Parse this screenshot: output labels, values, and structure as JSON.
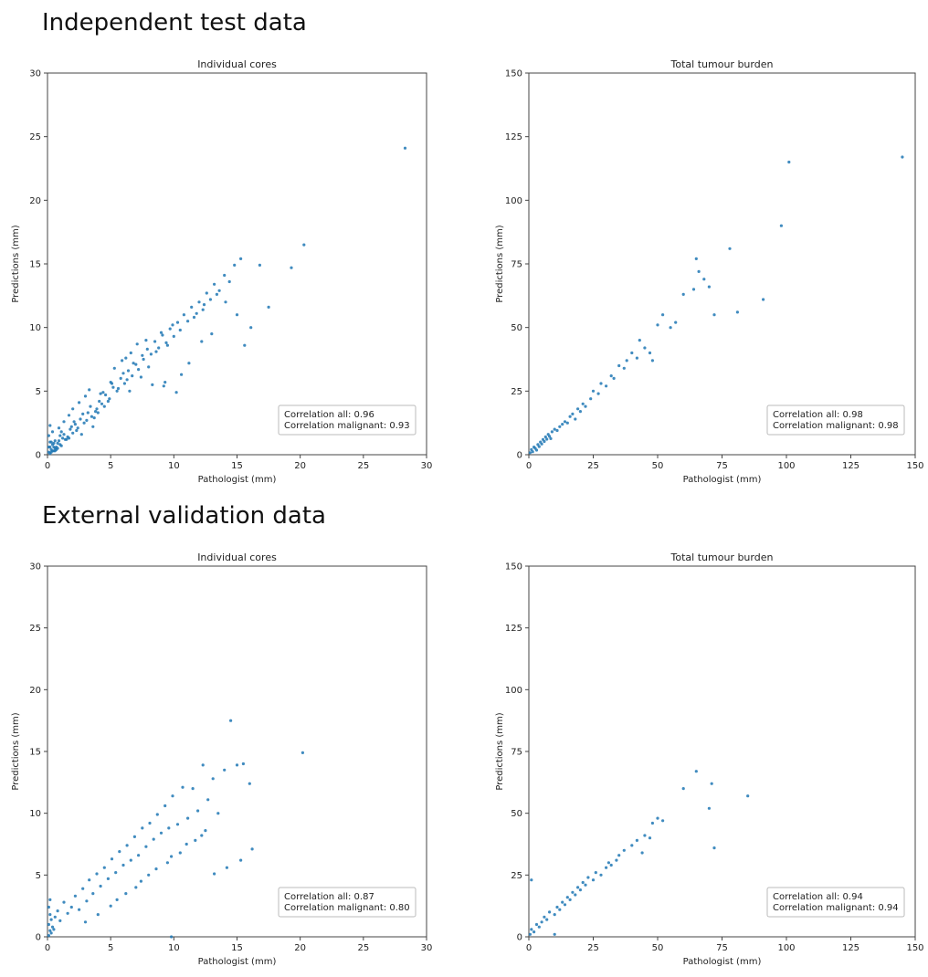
{
  "sections": {
    "top_title": "Independent test data",
    "bottom_title": "External validation data"
  },
  "colors": {
    "marker": "#1f77b4",
    "axes": "#444444",
    "text": "#222222"
  },
  "chart_data": [
    {
      "type": "scatter",
      "title": "Individual cores",
      "xlabel": "Pathologist (mm)",
      "ylabel": "Predictions (mm)",
      "xlim": [
        0,
        30
      ],
      "ylim": [
        0,
        30
      ],
      "xticks": [
        0,
        5,
        10,
        15,
        20,
        25,
        30
      ],
      "yticks": [
        0,
        5,
        10,
        15,
        20,
        25,
        30
      ],
      "grid": false,
      "legend_position": "bottom-right",
      "annotation": [
        "Correlation all: 0.96",
        "Correlation malignant: 0.93"
      ],
      "x": [
        0.1,
        0.2,
        0.3,
        0.4,
        0.5,
        0.6,
        0.8,
        1.0,
        1.2,
        1.5,
        0.2,
        0.4,
        0.6,
        0.9,
        1.1,
        1.3,
        1.6,
        1.8,
        2.0,
        2.2,
        0.3,
        0.7,
        1.0,
        1.4,
        1.9,
        2.3,
        2.6,
        2.9,
        3.2,
        3.5,
        0.5,
        1.1,
        1.7,
        2.1,
        2.4,
        2.8,
        3.1,
        3.4,
        3.8,
        4.1,
        0.1,
        0.2,
        0.1,
        0.3,
        0.2,
        0.5,
        0.4,
        0.7,
        0.6,
        0.8,
        4.3,
        4.6,
        4.9,
        5.2,
        5.5,
        5.8,
        6.1,
        6.4,
        6.7,
        7.0,
        3.9,
        4.4,
        4.8,
        5.1,
        5.6,
        6.0,
        6.3,
        6.8,
        7.2,
        7.5,
        7.6,
        7.9,
        8.2,
        8.5,
        8.8,
        9.1,
        9.4,
        9.7,
        10.0,
        10.3,
        8.0,
        8.6,
        9.0,
        9.5,
        9.9,
        10.5,
        10.8,
        11.1,
        11.4,
        11.8,
        12.0,
        12.3,
        12.6,
        12.9,
        13.2,
        13.6,
        14.0,
        14.4,
        14.8,
        15.3,
        6.5,
        7.4,
        8.3,
        9.3,
        10.2,
        11.2,
        12.2,
        13.0,
        14.1,
        15.0,
        0.9,
        1.3,
        1.7,
        2.0,
        2.5,
        3.0,
        3.3,
        3.6,
        4.0,
        4.5,
        2.7,
        3.7,
        4.2,
        5.0,
        5.3,
        5.9,
        6.2,
        6.6,
        7.1,
        7.8,
        9.2,
        10.6,
        11.6,
        12.4,
        13.4,
        15.6,
        16.1,
        16.8,
        17.5,
        19.3,
        20.3,
        28.3
      ],
      "y": [
        0.2,
        0.1,
        0.4,
        0.3,
        0.6,
        0.5,
        0.9,
        0.8,
        1.3,
        1.2,
        0.6,
        0.8,
        0.3,
        1.1,
        0.7,
        1.6,
        1.4,
        2.0,
        1.7,
        2.4,
        1.0,
        0.6,
        1.5,
        1.2,
        2.2,
        1.9,
        2.8,
        2.5,
        3.3,
        3.0,
        0.9,
        1.8,
        1.3,
        2.6,
        2.1,
        3.2,
        2.7,
        3.8,
        3.4,
        4.2,
        0.6,
        1.0,
        1.5,
        0.2,
        2.3,
        0.3,
        1.8,
        0.4,
        1.1,
        0.5,
        4.0,
        4.7,
        4.4,
        5.3,
        5.0,
        6.0,
        5.6,
        6.6,
        6.2,
        7.1,
        3.6,
        4.9,
        4.2,
        5.6,
        5.2,
        6.4,
        5.9,
        7.2,
        6.7,
        7.8,
        7.5,
        8.3,
        7.9,
        8.9,
        8.4,
        9.4,
        8.8,
        9.9,
        9.3,
        10.4,
        6.9,
        8.1,
        9.6,
        8.6,
        10.2,
        9.8,
        11.0,
        10.5,
        11.6,
        11.1,
        12.0,
        11.4,
        12.7,
        12.2,
        13.4,
        12.9,
        14.1,
        13.6,
        14.9,
        15.4,
        5.0,
        6.1,
        5.5,
        5.7,
        4.9,
        7.2,
        8.9,
        9.5,
        12.0,
        11.0,
        2.1,
        2.6,
        3.1,
        3.6,
        4.1,
        4.6,
        5.1,
        2.2,
        3.3,
        3.8,
        1.6,
        2.9,
        4.8,
        5.7,
        6.8,
        7.4,
        7.6,
        8.0,
        8.7,
        9.0,
        5.4,
        6.3,
        10.8,
        11.8,
        12.6,
        8.6,
        10.0,
        14.9,
        11.6,
        14.7,
        16.5,
        24.1
      ]
    },
    {
      "type": "scatter",
      "title": "Total tumour burden",
      "xlabel": "Pathologist (mm)",
      "ylabel": "Predictions (mm)",
      "xlim": [
        0,
        150
      ],
      "ylim": [
        0,
        150
      ],
      "xticks": [
        0,
        25,
        50,
        75,
        100,
        125,
        150
      ],
      "yticks": [
        0,
        25,
        50,
        75,
        100,
        125,
        150
      ],
      "grid": false,
      "legend_position": "bottom-right",
      "annotation": [
        "Correlation all: 0.98",
        "Correlation malignant: 0.98"
      ],
      "x": [
        0.5,
        1,
        1.5,
        2,
        2.5,
        3,
        3.5,
        4,
        4.5,
        5,
        5.5,
        6,
        6.5,
        7,
        7.5,
        8,
        8.5,
        9,
        10,
        11,
        12,
        13,
        14,
        15,
        16,
        17,
        18,
        19,
        20,
        21,
        22,
        24,
        25,
        27,
        28,
        30,
        32,
        33,
        35,
        37,
        38,
        40,
        42,
        43,
        45,
        47,
        48,
        50,
        52,
        55,
        57,
        60,
        64,
        65,
        66,
        68,
        70,
        72,
        78,
        81,
        91,
        98,
        101,
        145
      ],
      "y": [
        0.8,
        2,
        1.2,
        3,
        2.5,
        1.8,
        4,
        3.2,
        5,
        4.2,
        6,
        5.2,
        7,
        6.1,
        8,
        7.2,
        6.3,
        9,
        10,
        9.5,
        11,
        12,
        13,
        12.5,
        15,
        16,
        14,
        18,
        17,
        20,
        19,
        22,
        25,
        24,
        28,
        27,
        31,
        30,
        35,
        34,
        37,
        40,
        38,
        45,
        42,
        40,
        37,
        51,
        55,
        50,
        52,
        63,
        65,
        77,
        72,
        69,
        66,
        55,
        81,
        56,
        61,
        90,
        115,
        117
      ]
    },
    {
      "type": "scatter",
      "title": "Individual cores",
      "xlabel": "Pathologist (mm)",
      "ylabel": "Predictions (mm)",
      "xlim": [
        0,
        30
      ],
      "ylim": [
        0,
        30
      ],
      "xticks": [
        0,
        5,
        10,
        15,
        20,
        25,
        30
      ],
      "yticks": [
        0,
        5,
        10,
        15,
        20,
        25,
        30
      ],
      "grid": false,
      "legend_position": "bottom-right",
      "annotation": [
        "Correlation all: 0.87",
        "Correlation malignant: 0.80"
      ],
      "x": [
        0.1,
        0.2,
        0.1,
        0.3,
        0.2,
        0.4,
        0.1,
        0.3,
        0.5,
        0.2,
        0.6,
        0.8,
        1.0,
        1.3,
        1.6,
        1.9,
        2.2,
        2.5,
        2.8,
        3.1,
        3.3,
        3.6,
        3.9,
        4.2,
        4.5,
        4.8,
        5.1,
        5.4,
        5.7,
        6.0,
        6.3,
        6.6,
        6.9,
        7.2,
        7.5,
        7.8,
        8.1,
        8.4,
        8.7,
        9.0,
        9.3,
        9.6,
        9.9,
        10.3,
        10.7,
        11.1,
        11.5,
        11.9,
        12.3,
        12.7,
        13.1,
        13.5,
        14.0,
        14.5,
        15.0,
        15.5,
        16.0,
        5.0,
        6.2,
        7.4,
        8.6,
        9.8,
        11.0,
        12.2,
        3.0,
        4.0,
        5.5,
        7.0,
        8.0,
        9.5,
        10.5,
        11.7,
        12.5,
        13.2,
        14.2,
        15.3,
        16.2,
        20.2,
        9.8
      ],
      "y": [
        0.1,
        0.5,
        1.0,
        0.3,
        1.8,
        0.8,
        2.4,
        1.4,
        0.6,
        3.0,
        1.6,
        2.1,
        1.3,
        2.8,
        1.9,
        2.4,
        3.3,
        2.2,
        3.9,
        2.9,
        4.6,
        3.5,
        5.1,
        4.1,
        5.6,
        4.7,
        6.3,
        5.2,
        6.9,
        5.8,
        7.4,
        6.2,
        8.1,
        6.6,
        8.8,
        7.3,
        9.2,
        7.9,
        9.9,
        8.4,
        10.6,
        8.8,
        11.4,
        9.1,
        12.1,
        9.6,
        12.0,
        10.2,
        13.9,
        11.1,
        12.8,
        10.0,
        13.5,
        17.5,
        13.9,
        14.0,
        12.4,
        2.5,
        3.5,
        4.5,
        5.5,
        6.5,
        7.5,
        8.2,
        1.2,
        1.8,
        3.0,
        4.0,
        5.0,
        6.0,
        6.8,
        7.8,
        8.6,
        5.1,
        5.6,
        6.2,
        7.1,
        14.9,
        0.0
      ]
    },
    {
      "type": "scatter",
      "title": "Total tumour burden",
      "xlabel": "Pathologist (mm)",
      "ylabel": "Predictions (mm)",
      "xlim": [
        0,
        150
      ],
      "ylim": [
        0,
        150
      ],
      "xticks": [
        0,
        25,
        50,
        75,
        100,
        125,
        150
      ],
      "yticks": [
        0,
        25,
        50,
        75,
        100,
        125,
        150
      ],
      "grid": false,
      "legend_position": "bottom-right",
      "annotation": [
        "Correlation all: 0.94",
        "Correlation malignant: 0.94"
      ],
      "x": [
        0.5,
        1,
        2,
        3,
        4,
        5,
        6,
        7,
        8,
        10,
        11,
        12,
        13,
        14,
        15,
        16,
        17,
        18,
        19,
        20,
        21,
        22,
        23,
        25,
        26,
        28,
        30,
        31,
        32,
        34,
        35,
        37,
        40,
        42,
        44,
        45,
        47,
        48,
        50,
        52,
        60,
        65,
        70,
        71,
        72,
        85,
        1,
        10
      ],
      "y": [
        1,
        3,
        2,
        5,
        4,
        6,
        8,
        7,
        10,
        9,
        12,
        11,
        14,
        13,
        16,
        15,
        18,
        17,
        20,
        19,
        22,
        21,
        24,
        23,
        26,
        25,
        28,
        30,
        29,
        31,
        33,
        35,
        37,
        39,
        34,
        41,
        40,
        46,
        48,
        47,
        60,
        67,
        52,
        62,
        36,
        57,
        23,
        1
      ]
    }
  ]
}
